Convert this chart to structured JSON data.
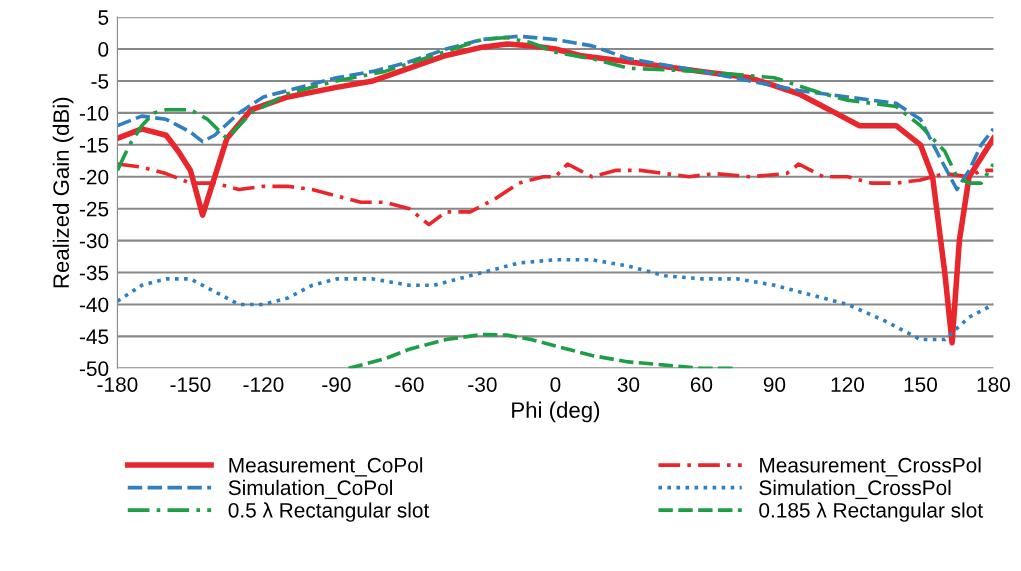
{
  "chart_data": {
    "type": "line",
    "xlabel": "Phi (deg)",
    "ylabel": "Realized Gain (dBi)",
    "xlim": [
      -180,
      180
    ],
    "xticks": [
      -180,
      -150,
      -120,
      -90,
      -60,
      -30,
      0,
      30,
      60,
      90,
      120,
      150,
      180
    ],
    "ylim": [
      -50,
      5
    ],
    "yticks": [
      -50,
      -45,
      -40,
      -35,
      -30,
      -25,
      -20,
      -15,
      -10,
      -5,
      0,
      5
    ],
    "grid": "y",
    "legend": "bottom",
    "marker": "none",
    "series": [
      {
        "name": "Measurement_CoPol",
        "color": "#e8262b",
        "line_style": "solid",
        "x": [
          -180,
          -170,
          -160,
          -155,
          -150,
          -145,
          -140,
          -135,
          -125,
          -110,
          -90,
          -75,
          -60,
          -45,
          -30,
          -20,
          -10,
          0,
          10,
          30,
          60,
          80,
          100,
          110,
          115,
          125,
          140,
          150,
          155,
          160,
          163,
          166,
          170,
          180
        ],
        "values": [
          -14,
          -12.5,
          -13.5,
          -16,
          -19,
          -26,
          -20,
          -14,
          -9.5,
          -7.5,
          -6,
          -5,
          -3,
          -1,
          0.3,
          0.8,
          0.5,
          0,
          -1,
          -2,
          -3.5,
          -4.5,
          -7,
          -9,
          -10,
          -12,
          -12,
          -15,
          -20,
          -35,
          -46,
          -30,
          -20,
          -14
        ]
      },
      {
        "name": "Measurement_CrossPol",
        "color": "#e8262b",
        "line_style": "dashdot",
        "x": [
          -180,
          -170,
          -160,
          -150,
          -140,
          -130,
          -120,
          -110,
          -100,
          -90,
          -80,
          -70,
          -60,
          -52,
          -45,
          -35,
          -25,
          -15,
          -5,
          0,
          5,
          15,
          25,
          35,
          45,
          55,
          65,
          80,
          95,
          100,
          105,
          110,
          120,
          130,
          140,
          150,
          160,
          170,
          175,
          180
        ],
        "values": [
          -18,
          -18.5,
          -19.5,
          -21,
          -21,
          -22,
          -21.5,
          -21.5,
          -22,
          -23,
          -24,
          -24,
          -25,
          -27.5,
          -25.5,
          -25.5,
          -23.5,
          -21,
          -20,
          -20,
          -18,
          -20,
          -19,
          -19,
          -19.5,
          -20,
          -19.5,
          -20,
          -19.5,
          -18,
          -19,
          -20,
          -20,
          -21,
          -21,
          -20.5,
          -19.5,
          -20,
          -19,
          -19
        ]
      },
      {
        "name": "Simulation_CoPol",
        "color": "#2f7fc1",
        "line_style": "dashed",
        "x": [
          -180,
          -170,
          -160,
          -150,
          -145,
          -140,
          -130,
          -120,
          -100,
          -90,
          -75,
          -60,
          -45,
          -30,
          -15,
          0,
          15,
          30,
          45,
          60,
          80,
          100,
          120,
          140,
          150,
          158,
          165,
          170,
          175,
          180
        ],
        "values": [
          -12,
          -10.5,
          -11,
          -13,
          -14.5,
          -13.5,
          -10,
          -7.5,
          -5.5,
          -4.5,
          -3.5,
          -2,
          0,
          1.5,
          2,
          1.5,
          0.5,
          -1.5,
          -2.5,
          -3.5,
          -5,
          -6.5,
          -7.5,
          -8.5,
          -11,
          -17,
          -22,
          -19,
          -15,
          -12.5
        ]
      },
      {
        "name": "Simulation_CrossPol",
        "color": "#2f7fc1",
        "line_style": "dotted",
        "x": [
          -180,
          -170,
          -160,
          -150,
          -140,
          -130,
          -120,
          -110,
          -100,
          -90,
          -75,
          -60,
          -50,
          -40,
          -30,
          -15,
          0,
          15,
          30,
          45,
          60,
          75,
          90,
          105,
          120,
          135,
          150,
          160,
          170,
          180
        ],
        "values": [
          -39.5,
          -37,
          -36,
          -36,
          -38,
          -40,
          -40,
          -39,
          -37,
          -36,
          -36,
          -37,
          -37,
          -36,
          -35,
          -33.5,
          -33,
          -33,
          -34,
          -35.5,
          -36,
          -36,
          -37,
          -38.5,
          -40,
          -42.5,
          -45.5,
          -45.5,
          -42,
          -40
        ]
      },
      {
        "name": "0.5 λ Rectangular slot",
        "color": "#1f9e48",
        "line_style": "dashdot",
        "x": [
          -180,
          -175,
          -170,
          -165,
          -160,
          -150,
          -143,
          -135,
          -125,
          -110,
          -90,
          -70,
          -50,
          -30,
          -20,
          -10,
          0,
          15,
          30,
          60,
          90,
          110,
          120,
          130,
          140,
          150,
          160,
          165,
          170,
          175,
          180
        ],
        "values": [
          -19,
          -15,
          -12,
          -10,
          -9.5,
          -9.5,
          -11,
          -14,
          -10,
          -7,
          -5,
          -3.5,
          -1,
          1.5,
          1.8,
          1,
          -0.5,
          -1.5,
          -3,
          -3.5,
          -4.5,
          -7,
          -8,
          -8.5,
          -9,
          -12,
          -16,
          -20,
          -21,
          -21,
          -18
        ]
      },
      {
        "name": "0.185 λ Rectangular slot",
        "color": "#1f9e48",
        "line_style": "dashed",
        "x": [
          -85,
          -70,
          -60,
          -45,
          -30,
          -20,
          -10,
          0,
          15,
          30,
          45,
          60,
          75
        ],
        "values": [
          -50,
          -48.5,
          -47,
          -45.5,
          -44.7,
          -44.8,
          -45.5,
          -46.5,
          -48,
          -49,
          -49.5,
          -50,
          -50
        ]
      }
    ]
  }
}
